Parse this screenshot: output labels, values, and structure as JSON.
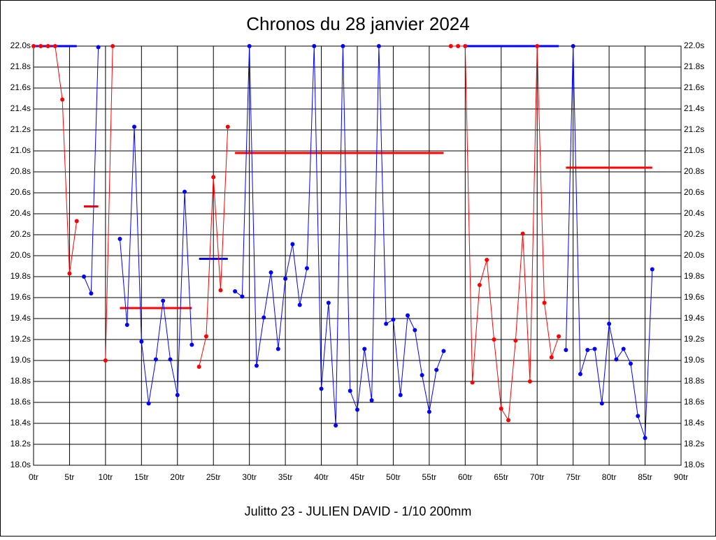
{
  "chart_data": {
    "type": "line",
    "title": "Chronos du 28 janvier 2024",
    "footer": "Julitto 23 - JULIEN DAVID - 1/10 200mm",
    "xlim": [
      0,
      90
    ],
    "ylim": [
      18.0,
      22.0
    ],
    "grid": true,
    "xticks": [
      {
        "value": 0,
        "label": "0tr"
      },
      {
        "value": 5,
        "label": "5tr"
      },
      {
        "value": 10,
        "label": "10tr"
      },
      {
        "value": 15,
        "label": "15tr"
      },
      {
        "value": 20,
        "label": "20tr"
      },
      {
        "value": 25,
        "label": "25tr"
      },
      {
        "value": 30,
        "label": "30tr"
      },
      {
        "value": 35,
        "label": "35tr"
      },
      {
        "value": 40,
        "label": "40tr"
      },
      {
        "value": 45,
        "label": "45tr"
      },
      {
        "value": 50,
        "label": "50tr"
      },
      {
        "value": 55,
        "label": "55tr"
      },
      {
        "value": 60,
        "label": "60tr"
      },
      {
        "value": 65,
        "label": "65tr"
      },
      {
        "value": 70,
        "label": "70tr"
      },
      {
        "value": 75,
        "label": "75tr"
      },
      {
        "value": 80,
        "label": "80tr"
      },
      {
        "value": 85,
        "label": "85tr"
      },
      {
        "value": 90,
        "label": "90tr"
      }
    ],
    "yticks": [
      {
        "value": 18.0,
        "label": "18.0s"
      },
      {
        "value": 18.2,
        "label": "18.2s"
      },
      {
        "value": 18.4,
        "label": "18.4s"
      },
      {
        "value": 18.6,
        "label": "18.6s"
      },
      {
        "value": 18.8,
        "label": "18.8s"
      },
      {
        "value": 19.0,
        "label": "19.0s"
      },
      {
        "value": 19.2,
        "label": "19.2s"
      },
      {
        "value": 19.4,
        "label": "19.4s"
      },
      {
        "value": 19.6,
        "label": "19.6s"
      },
      {
        "value": 19.8,
        "label": "19.8s"
      },
      {
        "value": 20.0,
        "label": "20.0s"
      },
      {
        "value": 20.2,
        "label": "20.2s"
      },
      {
        "value": 20.4,
        "label": "20.4s"
      },
      {
        "value": 20.6,
        "label": "20.6s"
      },
      {
        "value": 20.8,
        "label": "20.8s"
      },
      {
        "value": 21.0,
        "label": "21.0s"
      },
      {
        "value": 21.2,
        "label": "21.2s"
      },
      {
        "value": 21.4,
        "label": "21.4s"
      },
      {
        "value": 21.6,
        "label": "21.6s"
      },
      {
        "value": 21.8,
        "label": "21.8s"
      },
      {
        "value": 22.0,
        "label": "22.0s"
      }
    ],
    "series": [
      {
        "color": "#ff0000",
        "x": [
          0,
          1,
          2,
          3,
          4,
          5,
          6
        ],
        "values": [
          22.0,
          22.0,
          22.0,
          22.0,
          21.49,
          19.83,
          20.33
        ]
      },
      {
        "color": "#0000ff",
        "x": [
          7,
          8,
          9
        ],
        "values": [
          19.8,
          19.64,
          21.99
        ]
      },
      {
        "color": "#ff0000",
        "x": [
          10,
          11
        ],
        "values": [
          19.0,
          22.0
        ]
      },
      {
        "color": "#0000ff",
        "x": [
          12,
          13,
          14,
          15,
          16,
          17,
          18,
          19,
          20,
          21,
          22
        ],
        "values": [
          20.16,
          19.34,
          21.23,
          19.18,
          18.59,
          19.01,
          19.57,
          19.01,
          18.67,
          20.61,
          19.15
        ]
      },
      {
        "color": "#ff0000",
        "x": [
          23,
          24,
          25,
          26,
          27
        ],
        "values": [
          18.94,
          19.23,
          20.75,
          19.67,
          21.23
        ]
      },
      {
        "color": "#0000ff",
        "x": [
          28,
          29,
          30,
          31,
          32,
          33,
          34,
          35,
          36,
          37,
          38,
          39,
          40,
          41,
          42,
          43,
          44,
          45,
          46,
          47,
          48,
          49,
          50,
          51,
          52,
          53,
          54,
          55,
          56,
          57
        ],
        "values": [
          19.66,
          19.61,
          22.0,
          18.95,
          19.41,
          19.84,
          19.11,
          19.78,
          20.11,
          19.53,
          19.88,
          22.0,
          18.73,
          19.55,
          18.38,
          22.0,
          18.71,
          18.53,
          19.11,
          18.62,
          22.0,
          19.35,
          19.39,
          18.67,
          19.43,
          19.29,
          18.86,
          18.51,
          18.91,
          19.09
        ]
      },
      {
        "color": "#ff0000",
        "x": [
          58,
          59,
          60,
          61,
          62,
          63,
          64,
          65,
          66,
          67,
          68,
          69,
          70,
          71,
          72,
          73
        ],
        "values": [
          22.0,
          22.0,
          22.0,
          18.79,
          19.72,
          19.96,
          19.2,
          18.54,
          18.43,
          19.19,
          20.21,
          18.8,
          22.0,
          19.55,
          19.03,
          19.23
        ]
      },
      {
        "color": "#0000ff",
        "x": [
          74,
          75,
          76,
          77,
          78,
          79,
          80,
          81,
          82,
          83,
          84,
          85,
          86
        ],
        "values": [
          19.1,
          22.0,
          18.87,
          19.1,
          19.11,
          18.59,
          19.35,
          19.01,
          19.11,
          18.97,
          18.47,
          18.26,
          19.87
        ]
      }
    ],
    "averages": [
      {
        "color": "#0000ff",
        "x": [
          0,
          6
        ],
        "value": 22.0
      },
      {
        "color": "#ff0000",
        "x": [
          7,
          9
        ],
        "value": 20.47
      },
      {
        "color": "#ff0000",
        "x": [
          12,
          22
        ],
        "value": 19.5
      },
      {
        "color": "#0000ff",
        "x": [
          23,
          27
        ],
        "value": 19.97
      },
      {
        "color": "#ff0000",
        "x": [
          28,
          57
        ],
        "value": 20.98
      },
      {
        "color": "#0000ff",
        "x": [
          60,
          73
        ],
        "value": 22.0
      },
      {
        "color": "#ff0000",
        "x": [
          74,
          86
        ],
        "value": 20.84
      }
    ]
  }
}
